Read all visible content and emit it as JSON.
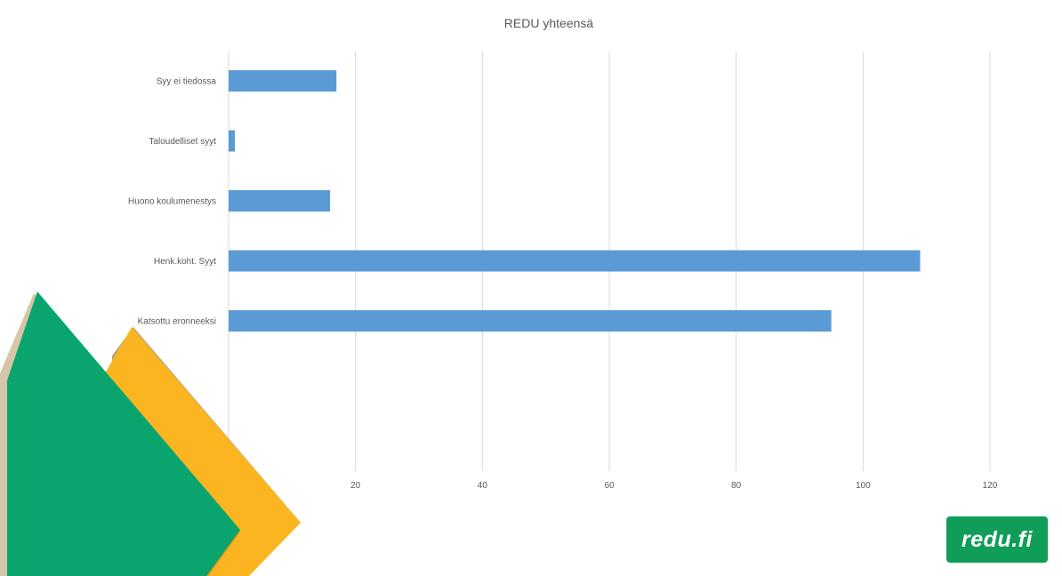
{
  "chart_data": {
    "type": "bar",
    "orientation": "horizontal",
    "title": "REDU yhteensä",
    "xlabel": "",
    "ylabel": "",
    "categories": [
      "Syy ei tiedossa",
      "Taloudelliset syyt",
      "Huono koulumenestys",
      "Henk.koht. Syyt",
      "Katsottu eronneeksi"
    ],
    "values": [
      17,
      1,
      16,
      109,
      95
    ],
    "xlim": [
      0,
      120
    ],
    "xticks": [
      "0",
      "20",
      "40",
      "60",
      "80",
      "100",
      "120"
    ],
    "grid": true,
    "legend": "none",
    "bar_color": "#5b9bd5"
  },
  "branding": {
    "logo_text": "redu.fi",
    "logo_bg": "#0f9d58",
    "decor_green": "#0aa56f",
    "decor_yellow": "#fbb520",
    "decor_shadow": "#8a5a00"
  }
}
